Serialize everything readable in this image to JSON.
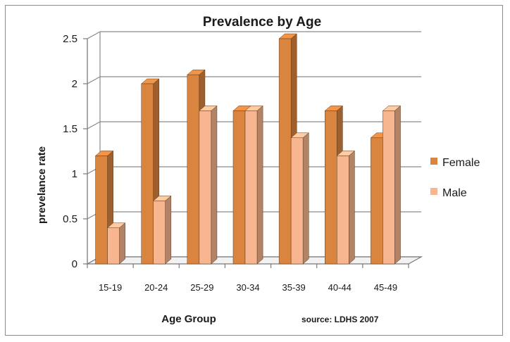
{
  "chart_data": {
    "type": "bar",
    "title": "Prevalence by Age",
    "xlabel": "Age Group",
    "ylabel": "prevelance rate",
    "categories": [
      "15-19",
      "20-24",
      "25-29",
      "30-34",
      "35-39",
      "40-44",
      "45-49"
    ],
    "series": [
      {
        "name": "Female",
        "color": "#d9843f",
        "values": [
          1.2,
          2.0,
          2.1,
          1.7,
          2.5,
          1.7,
          1.4
        ]
      },
      {
        "name": "Male",
        "color": "#f8b690",
        "values": [
          0.4,
          0.7,
          1.7,
          1.7,
          1.4,
          1.2,
          1.7
        ]
      }
    ],
    "ylim": [
      0,
      2.5
    ],
    "yticks": [
      "0",
      "0.5",
      "1",
      "1.5",
      "2",
      "2.5"
    ],
    "grid": true,
    "legend_position": "right",
    "source_note": "source: LDHS 2007",
    "view": "3d-clustered"
  }
}
